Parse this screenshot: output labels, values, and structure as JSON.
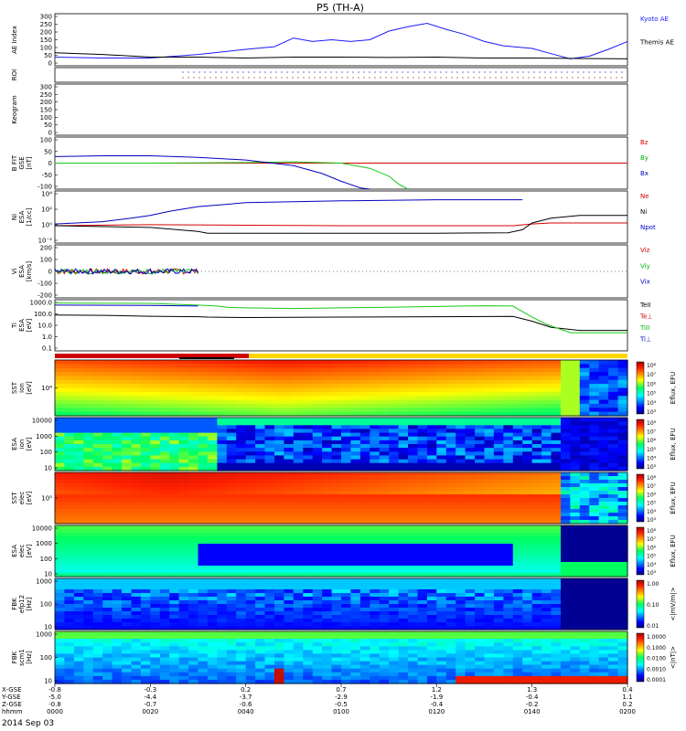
{
  "chart_data": {
    "type": "line",
    "title": "P5 (TH-A)",
    "date": "2014 Sep 03",
    "panels": [
      {
        "id": "ae",
        "ylabel": [
          "AE Index"
        ],
        "ylim": [
          0,
          300
        ],
        "yticks": [
          "300",
          "250",
          "200",
          "150",
          "100",
          "50",
          "0"
        ],
        "legend": [
          "Kyoto AE",
          "Themis AE"
        ],
        "legend_colors": [
          "#1a1aff",
          "#000000"
        ],
        "series": [
          {
            "name": "Kyoto AE",
            "color": "#1a1aff",
            "x": [
              0,
              10,
              20,
              30,
              40,
              46,
              50,
              54,
              58,
              62,
              66,
              70,
              74,
              78,
              82,
              86,
              90,
              94,
              100,
              104,
              108,
              112,
              116,
              120
            ],
            "y": [
              50,
              45,
              45,
              65,
              95,
              110,
              160,
              140,
              150,
              140,
              150,
              200,
              225,
              245,
              210,
              180,
              140,
              115,
              100,
              70,
              40,
              55,
              95,
              140
            ]
          },
          {
            "name": "Themis AE",
            "color": "#000000",
            "x": [
              0,
              10,
              20,
              30,
              40,
              50,
              60,
              70,
              80,
              90,
              100,
              110,
              120
            ],
            "y": [
              75,
              65,
              50,
              50,
              45,
              50,
              50,
              48,
              50,
              45,
              45,
              42,
              40
            ]
          }
        ]
      },
      {
        "id": "roi",
        "ylabel": [
          "ROI"
        ],
        "note": "dotted markers"
      },
      {
        "id": "keogram",
        "ylabel": [
          "Keogram"
        ],
        "ylim": [
          0,
          300
        ],
        "yticks": [
          "300",
          "250",
          "200",
          "150",
          "100",
          "50",
          "0"
        ]
      },
      {
        "id": "bfit",
        "ylabel": [
          "B FIT",
          "GSE",
          "[nT]"
        ],
        "ylim": [
          -100,
          100
        ],
        "yticks": [
          "100",
          "50",
          "0",
          "-50",
          "-100"
        ],
        "legend": [
          "Bz",
          "By",
          "Bx"
        ],
        "legend_colors": [
          "#d40000",
          "#00b000",
          "#0000c0"
        ],
        "series": [
          {
            "name": "Bz",
            "color": "#d40000",
            "x": [
              0,
              120
            ],
            "y": [
              0,
              0
            ]
          },
          {
            "name": "By",
            "color": "#18c818",
            "x": [
              0,
              20,
              40,
              50,
              60,
              66,
              70,
              72,
              74
            ],
            "y": [
              0,
              0,
              2,
              5,
              0,
              -20,
              -50,
              -80,
              -100
            ]
          },
          {
            "name": "Bx",
            "color": "#0000c0",
            "x": [
              0,
              10,
              20,
              30,
              40,
              50,
              56,
              60,
              64,
              66
            ],
            "y": [
              25,
              28,
              28,
              22,
              12,
              -10,
              -40,
              -70,
              -95,
              -100
            ]
          }
        ]
      },
      {
        "id": "ni",
        "ylabel": [
          "Ni",
          "ESA",
          "[1/cc]"
        ],
        "yscale": "log",
        "ylim": [
          0.001,
          1000000
        ],
        "yticks": [
          "10⁴",
          "10²",
          "10⁰",
          "10⁻²"
        ],
        "legend": [
          "Ne",
          "Ni",
          "Npot"
        ],
        "legend_colors": [
          "#d40000",
          "#000000",
          "#0000c0"
        ],
        "series": [
          {
            "name": "Ne",
            "color": "#d40000",
            "x": [
              0,
              20,
              40,
              60,
              80,
              96,
              100,
              104,
              120
            ],
            "y": [
              1,
              1.5,
              1.2,
              1,
              1,
              1,
              2,
              3,
              3
            ]
          },
          {
            "name": "Ni",
            "color": "#000000",
            "x": [
              0,
              20,
              30,
              32,
              40,
              60,
              80,
              95,
              98,
              100,
              104,
              110,
              120
            ],
            "y": [
              1,
              0.5,
              0.1,
              0.05,
              0.05,
              0.05,
              0.05,
              0.06,
              0.2,
              3,
              20,
              60,
              60
            ]
          },
          {
            "name": "Npot",
            "color": "#0000c0",
            "x": [
              0,
              10,
              16,
              20,
              24,
              30,
              36,
              40,
              60,
              80,
              96,
              98
            ],
            "y": [
              2,
              5,
              20,
              60,
              300,
              2000,
              5000,
              10000,
              20000,
              30000,
              30000,
              30000
            ]
          }
        ]
      },
      {
        "id": "vi",
        "ylabel": [
          "Vi",
          "ESA",
          "[km/s]"
        ],
        "ylim": [
          -200,
          200
        ],
        "yticks": [
          "200",
          "100",
          "0",
          "-100",
          "-200"
        ],
        "legend": [
          "Viz",
          "Viy",
          "Vix"
        ],
        "legend_colors": [
          "#d40000",
          "#00b000",
          "#0000c0"
        ],
        "series": [
          {
            "name": "Viz",
            "color": "#d40000",
            "x": [
              0,
              30
            ],
            "y": [
              0,
              0
            ]
          },
          {
            "name": "Viy",
            "color": "#18c818",
            "x": [
              0,
              30
            ],
            "y": [
              0,
              0
            ]
          },
          {
            "name": "Vix",
            "color": "#0000c0",
            "x": [
              0,
              30
            ],
            "y": [
              0,
              0
            ]
          }
        ]
      },
      {
        "id": "ti",
        "ylabel": [
          "Ti",
          "ESA",
          "[eV]"
        ],
        "yscale": "log",
        "ylim": [
          0.05,
          5000
        ],
        "yticks": [
          "1000.0",
          "100.0",
          "10.0",
          "1.0",
          "0.1"
        ],
        "legend": [
          "TeII",
          "Te⊥",
          "TiII",
          "Ti⊥"
        ],
        "legend_colors": [
          "#000000",
          "#d40000",
          "#00b000",
          "#0000c0"
        ],
        "series": [
          {
            "name": "TeII",
            "color": "#000000",
            "x": [
              0,
              10,
              20,
              30,
              32,
              40,
              60,
              80,
              96,
              100,
              104,
              110,
              120
            ],
            "y": [
              160,
              150,
              120,
              110,
              100,
              90,
              100,
              110,
              115,
              40,
              10,
              5,
              5
            ]
          },
          {
            "name": "TiII",
            "color": "#18c818",
            "x": [
              0,
              20,
              30,
              34,
              36,
              40,
              50,
              60,
              70,
              80,
              90,
              96,
              100,
              103,
              108,
              120
            ],
            "y": [
              2400,
              2200,
              1500,
              1200,
              900,
              800,
              700,
              800,
              900,
              1100,
              1300,
              1200,
              100,
              20,
              3,
              3
            ]
          },
          {
            "name": "Ti⊥",
            "color": "#0000c0",
            "x": [
              0,
              20,
              30
            ],
            "y": [
              1500,
              1400,
              1200
            ]
          }
        ]
      },
      {
        "id": "sst-ion",
        "ylabel": [
          "SST",
          "ion",
          "[eV]"
        ],
        "yticks": [
          "10⁴"
        ],
        "cbar_label": "Eflux, EFU",
        "cbar_ticks": [
          "10⁸",
          "10⁷",
          "10⁶",
          "10⁵",
          "10⁴",
          "10³"
        ]
      },
      {
        "id": "esa-ion",
        "ylabel": [
          "ESA",
          "ion",
          "[eV]"
        ],
        "yticks": [
          "10000",
          "1000",
          "100",
          "10"
        ],
        "cbar_label": "Eflux, EFU",
        "cbar_ticks": [
          "10⁸",
          "10⁷",
          "10⁶",
          "10⁵",
          "10⁴",
          "10³"
        ]
      },
      {
        "id": "sst-elec",
        "ylabel": [
          "SST",
          "elec",
          "[eV]"
        ],
        "yticks": [
          "10⁵"
        ],
        "cbar_label": "Eflux, EFU",
        "cbar_ticks": [
          "10⁸",
          "10⁷",
          "10⁶",
          "10⁵",
          "10⁴",
          "10³"
        ]
      },
      {
        "id": "esa-elec",
        "ylabel": [
          "ESA",
          "elec",
          "[eV]"
        ],
        "yticks": [
          "10000",
          "1000",
          "100",
          "10"
        ],
        "cbar_label": "Eflux, EFU",
        "cbar_ticks": [
          "10⁸",
          "10⁷",
          "10⁶",
          "10⁵",
          "10⁴",
          "10³"
        ]
      },
      {
        "id": "fbk-e",
        "ylabel": [
          "FBK",
          "efp12",
          "[Hz]"
        ],
        "yticks": [
          "1000",
          "100",
          "10"
        ],
        "cbar_label": "<|mV/m|>",
        "cbar_ticks": [
          "1.00",
          "0.10",
          "0.01"
        ]
      },
      {
        "id": "fbk-b",
        "ylabel": [
          "FBK",
          "scm1",
          "[Hz]"
        ],
        "yticks": [
          "1000",
          "100",
          "10"
        ],
        "cbar_label": "<|nT|>",
        "cbar_ticks": [
          "1.0000",
          "0.1000",
          "0.0100",
          "0.0010",
          "0.0001"
        ]
      }
    ],
    "xaxis": {
      "xlim": [
        0,
        120
      ],
      "row_labels": [
        "X-GSE",
        "Y-GSE",
        "Z-GSE",
        "hhmm"
      ],
      "ticks": [
        {
          "t": 0,
          "x": "-0.8",
          "y": "-5.0",
          "z": "-0.8",
          "hhmm": "0000"
        },
        {
          "t": 20,
          "x": "-0.3",
          "y": "-4.4",
          "z": "-0.7",
          "hhmm": "0020"
        },
        {
          "t": 40,
          "x": "0.2",
          "y": "-3.7",
          "z": "-0.6",
          "hhmm": "0040"
        },
        {
          "t": 60,
          "x": "0.7",
          "y": "-2.9",
          "z": "-0.5",
          "hhmm": "0100"
        },
        {
          "t": 80,
          "x": "1.2",
          "y": "-1.9",
          "z": "-0.4",
          "hhmm": "0120"
        },
        {
          "t": 100,
          "x": "1.3",
          "y": "-0.4",
          "z": "-0.2",
          "hhmm": "0140"
        },
        {
          "t": 120,
          "x": "0.4",
          "y": "1.1",
          "z": "0.2",
          "hhmm": "0200"
        }
      ]
    }
  }
}
